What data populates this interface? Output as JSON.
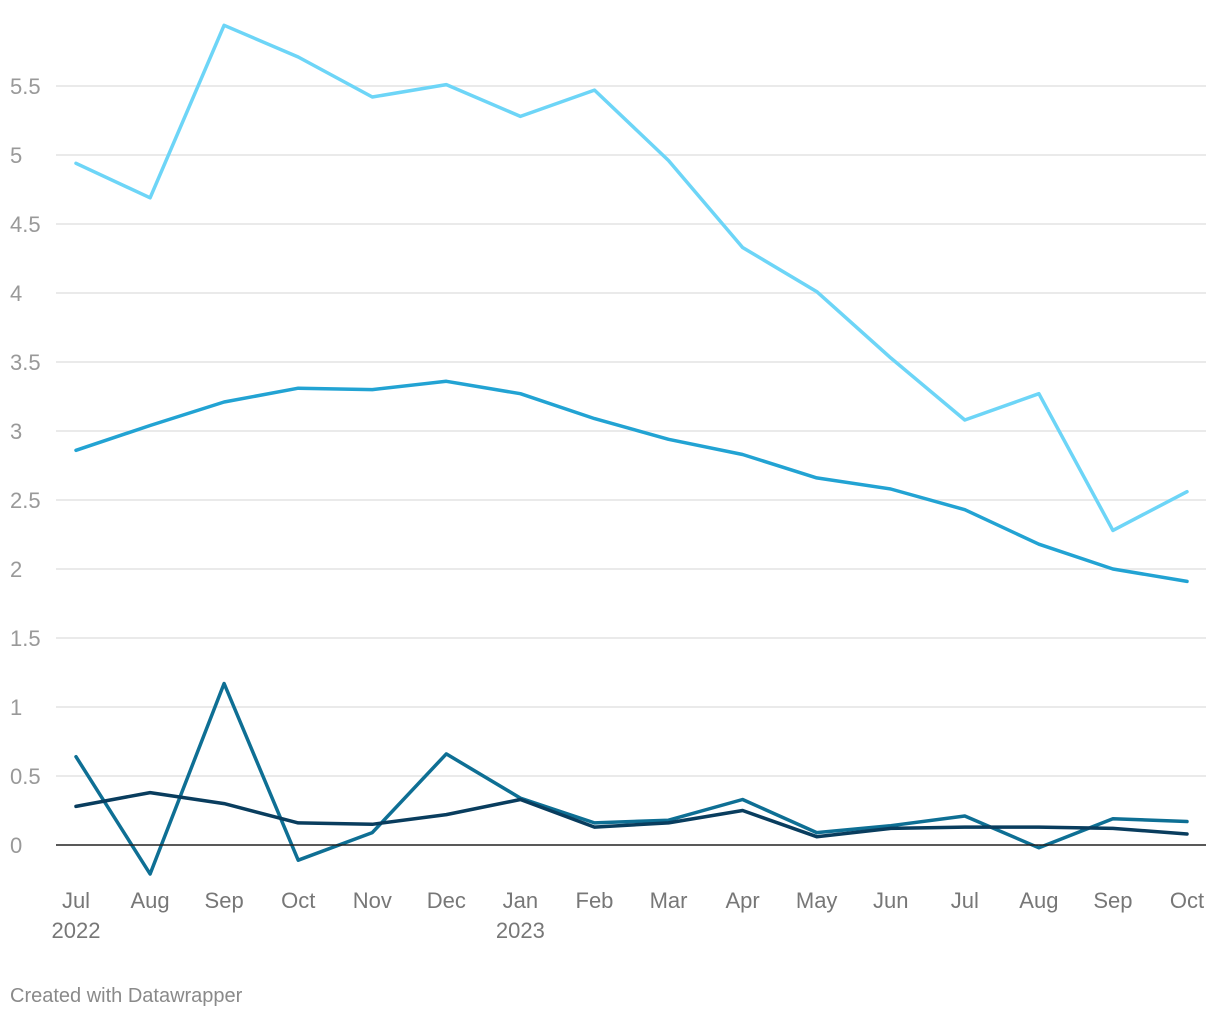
{
  "chart_data": {
    "type": "line",
    "title": "",
    "xlabel": "",
    "ylabel": "",
    "x": [
      "Jul 2022",
      "Aug",
      "Sep",
      "Oct",
      "Nov",
      "Dec",
      "Jan 2023",
      "Feb",
      "Mar",
      "Apr",
      "May",
      "Jun",
      "Jul",
      "Aug",
      "Sep",
      "Oct"
    ],
    "x_tick_labels": [
      {
        "line1": "Jul",
        "line2": "2022"
      },
      {
        "line1": "Aug",
        "line2": ""
      },
      {
        "line1": "Sep",
        "line2": ""
      },
      {
        "line1": "Oct",
        "line2": ""
      },
      {
        "line1": "Nov",
        "line2": ""
      },
      {
        "line1": "Dec",
        "line2": ""
      },
      {
        "line1": "Jan",
        "line2": "2023"
      },
      {
        "line1": "Feb",
        "line2": ""
      },
      {
        "line1": "Mar",
        "line2": ""
      },
      {
        "line1": "Apr",
        "line2": ""
      },
      {
        "line1": "May",
        "line2": ""
      },
      {
        "line1": "Jun",
        "line2": ""
      },
      {
        "line1": "Jul",
        "line2": ""
      },
      {
        "line1": "Aug",
        "line2": ""
      },
      {
        "line1": "Sep",
        "line2": ""
      },
      {
        "line1": "Oct",
        "line2": ""
      }
    ],
    "y_ticks": [
      0,
      0.5,
      1,
      1.5,
      2,
      2.5,
      3,
      3.5,
      4,
      4.5,
      5,
      5.5
    ],
    "y_tick_labels": [
      "0",
      "0.5",
      "1",
      "1.5",
      "2",
      "2.5",
      "3",
      "3.5",
      "4",
      "4.5",
      "5",
      "5.5"
    ],
    "ylim": [
      -0.3,
      6.0
    ],
    "grid": true,
    "legend": "none",
    "series": [
      {
        "color": "#6dd5f7",
        "values": [
          4.94,
          4.69,
          5.94,
          5.71,
          5.42,
          5.51,
          5.28,
          5.47,
          4.96,
          4.33,
          4.01,
          3.53,
          3.08,
          3.27,
          2.28,
          2.56
        ]
      },
      {
        "color": "#22a3d3",
        "values": [
          2.86,
          3.04,
          3.21,
          3.31,
          3.3,
          3.36,
          3.27,
          3.09,
          2.94,
          2.83,
          2.66,
          2.58,
          2.43,
          2.18,
          2.0,
          1.91
        ]
      },
      {
        "color": "#0e6f94",
        "values": [
          0.64,
          -0.21,
          1.17,
          -0.11,
          0.09,
          0.66,
          0.34,
          0.16,
          0.18,
          0.33,
          0.09,
          0.14,
          0.21,
          -0.02,
          0.19,
          0.17
        ]
      },
      {
        "color": "#093d5e",
        "values": [
          0.28,
          0.38,
          0.3,
          0.16,
          0.15,
          0.22,
          0.33,
          0.13,
          0.16,
          0.25,
          0.06,
          0.12,
          0.13,
          0.13,
          0.12,
          0.08
        ]
      }
    ]
  },
  "footer": {
    "credit": "Created with Datawrapper"
  }
}
